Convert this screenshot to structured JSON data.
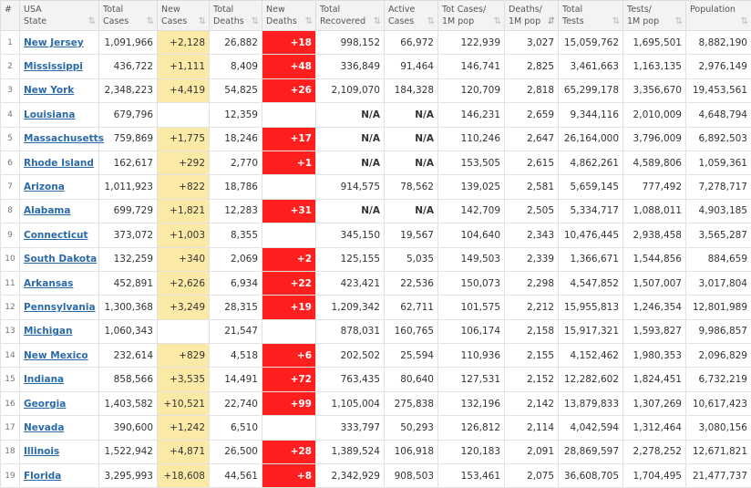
{
  "headers": [
    {
      "key": "num",
      "lines": [
        "#"
      ],
      "sortable": false
    },
    {
      "key": "state",
      "lines": [
        "USA",
        "State"
      ],
      "sortable": true
    },
    {
      "key": "total_cases",
      "lines": [
        "Total",
        "Cases"
      ],
      "sortable": true
    },
    {
      "key": "new_cases",
      "lines": [
        "New",
        "Cases"
      ],
      "sortable": true
    },
    {
      "key": "total_deaths",
      "lines": [
        "Total",
        "Deaths"
      ],
      "sortable": true
    },
    {
      "key": "new_deaths",
      "lines": [
        "New",
        "Deaths"
      ],
      "sortable": true
    },
    {
      "key": "total_recovered",
      "lines": [
        "Total",
        "Recovered"
      ],
      "sortable": true
    },
    {
      "key": "active_cases",
      "lines": [
        "Active",
        "Cases"
      ],
      "sortable": true
    },
    {
      "key": "tot_cases_per_1m",
      "lines": [
        "Tot Cases/",
        "1M pop"
      ],
      "sortable": true
    },
    {
      "key": "deaths_per_1m",
      "lines": [
        "Deaths/",
        "1M pop"
      ],
      "sortable": true,
      "sort_active": true
    },
    {
      "key": "total_tests",
      "lines": [
        "Total",
        "Tests"
      ],
      "sortable": true
    },
    {
      "key": "tests_per_1m",
      "lines": [
        "Tests/",
        "1M pop"
      ],
      "sortable": true
    },
    {
      "key": "population",
      "lines": [
        "Population"
      ],
      "sortable": true
    }
  ],
  "icons": {
    "sort": "sort-arrows-icon",
    "sort_active": "sort-desc-icon"
  },
  "colors": {
    "new_cases_bg": "#fbe9a6",
    "new_deaths_bg": "#ff1f1f",
    "link": "#2b6aa9"
  },
  "rows": [
    {
      "num": "1",
      "state": "New Jersey",
      "total_cases": "1,091,966",
      "new_cases": "+2,128",
      "total_deaths": "26,882",
      "new_deaths": "+18",
      "total_recovered": "998,152",
      "active_cases": "66,972",
      "tot_cases_per_1m": "122,939",
      "deaths_per_1m": "3,027",
      "total_tests": "15,059,762",
      "tests_per_1m": "1,695,501",
      "population": "8,882,190"
    },
    {
      "num": "2",
      "state": "Mississippi",
      "total_cases": "436,722",
      "new_cases": "+1,111",
      "total_deaths": "8,409",
      "new_deaths": "+48",
      "total_recovered": "336,849",
      "active_cases": "91,464",
      "tot_cases_per_1m": "146,741",
      "deaths_per_1m": "2,825",
      "total_tests": "3,461,663",
      "tests_per_1m": "1,163,135",
      "population": "2,976,149"
    },
    {
      "num": "3",
      "state": "New York",
      "total_cases": "2,348,223",
      "new_cases": "+4,419",
      "total_deaths": "54,825",
      "new_deaths": "+26",
      "total_recovered": "2,109,070",
      "active_cases": "184,328",
      "tot_cases_per_1m": "120,709",
      "deaths_per_1m": "2,818",
      "total_tests": "65,299,178",
      "tests_per_1m": "3,356,670",
      "population": "19,453,561"
    },
    {
      "num": "4",
      "state": "Louisiana",
      "total_cases": "679,796",
      "new_cases": "",
      "total_deaths": "12,359",
      "new_deaths": "",
      "total_recovered": "N/A",
      "active_cases": "N/A",
      "tot_cases_per_1m": "146,231",
      "deaths_per_1m": "2,659",
      "total_tests": "9,344,116",
      "tests_per_1m": "2,010,009",
      "population": "4,648,794"
    },
    {
      "num": "5",
      "state": "Massachusetts",
      "total_cases": "759,869",
      "new_cases": "+1,775",
      "total_deaths": "18,246",
      "new_deaths": "+17",
      "total_recovered": "N/A",
      "active_cases": "N/A",
      "tot_cases_per_1m": "110,246",
      "deaths_per_1m": "2,647",
      "total_tests": "26,164,000",
      "tests_per_1m": "3,796,009",
      "population": "6,892,503"
    },
    {
      "num": "6",
      "state": "Rhode Island",
      "total_cases": "162,617",
      "new_cases": "+292",
      "total_deaths": "2,770",
      "new_deaths": "+1",
      "total_recovered": "N/A",
      "active_cases": "N/A",
      "tot_cases_per_1m": "153,505",
      "deaths_per_1m": "2,615",
      "total_tests": "4,862,261",
      "tests_per_1m": "4,589,806",
      "population": "1,059,361"
    },
    {
      "num": "7",
      "state": "Arizona",
      "total_cases": "1,011,923",
      "new_cases": "+822",
      "total_deaths": "18,786",
      "new_deaths": "",
      "total_recovered": "914,575",
      "active_cases": "78,562",
      "tot_cases_per_1m": "139,025",
      "deaths_per_1m": "2,581",
      "total_tests": "5,659,145",
      "tests_per_1m": "777,492",
      "population": "7,278,717"
    },
    {
      "num": "8",
      "state": "Alabama",
      "total_cases": "699,729",
      "new_cases": "+1,821",
      "total_deaths": "12,283",
      "new_deaths": "+31",
      "total_recovered": "N/A",
      "active_cases": "N/A",
      "tot_cases_per_1m": "142,709",
      "deaths_per_1m": "2,505",
      "total_tests": "5,334,717",
      "tests_per_1m": "1,088,011",
      "population": "4,903,185"
    },
    {
      "num": "9",
      "state": "Connecticut",
      "total_cases": "373,072",
      "new_cases": "+1,003",
      "total_deaths": "8,355",
      "new_deaths": "",
      "total_recovered": "345,150",
      "active_cases": "19,567",
      "tot_cases_per_1m": "104,640",
      "deaths_per_1m": "2,343",
      "total_tests": "10,476,445",
      "tests_per_1m": "2,938,458",
      "population": "3,565,287"
    },
    {
      "num": "10",
      "state": "South Dakota",
      "total_cases": "132,259",
      "new_cases": "+340",
      "total_deaths": "2,069",
      "new_deaths": "+2",
      "total_recovered": "125,155",
      "active_cases": "5,035",
      "tot_cases_per_1m": "149,503",
      "deaths_per_1m": "2,339",
      "total_tests": "1,366,671",
      "tests_per_1m": "1,544,856",
      "population": "884,659"
    },
    {
      "num": "11",
      "state": "Arkansas",
      "total_cases": "452,891",
      "new_cases": "+2,626",
      "total_deaths": "6,934",
      "new_deaths": "+22",
      "total_recovered": "423,421",
      "active_cases": "22,536",
      "tot_cases_per_1m": "150,073",
      "deaths_per_1m": "2,298",
      "total_tests": "4,547,852",
      "tests_per_1m": "1,507,007",
      "population": "3,017,804"
    },
    {
      "num": "12",
      "state": "Pennsylvania",
      "total_cases": "1,300,368",
      "new_cases": "+3,249",
      "total_deaths": "28,315",
      "new_deaths": "+19",
      "total_recovered": "1,209,342",
      "active_cases": "62,711",
      "tot_cases_per_1m": "101,575",
      "deaths_per_1m": "2,212",
      "total_tests": "15,955,813",
      "tests_per_1m": "1,246,354",
      "population": "12,801,989"
    },
    {
      "num": "13",
      "state": "Michigan",
      "total_cases": "1,060,343",
      "new_cases": "",
      "total_deaths": "21,547",
      "new_deaths": "",
      "total_recovered": "878,031",
      "active_cases": "160,765",
      "tot_cases_per_1m": "106,174",
      "deaths_per_1m": "2,158",
      "total_tests": "15,917,321",
      "tests_per_1m": "1,593,827",
      "population": "9,986,857"
    },
    {
      "num": "14",
      "state": "New Mexico",
      "total_cases": "232,614",
      "new_cases": "+829",
      "total_deaths": "4,518",
      "new_deaths": "+6",
      "total_recovered": "202,502",
      "active_cases": "25,594",
      "tot_cases_per_1m": "110,936",
      "deaths_per_1m": "2,155",
      "total_tests": "4,152,462",
      "tests_per_1m": "1,980,353",
      "population": "2,096,829"
    },
    {
      "num": "15",
      "state": "Indiana",
      "total_cases": "858,566",
      "new_cases": "+3,535",
      "total_deaths": "14,491",
      "new_deaths": "+72",
      "total_recovered": "763,435",
      "active_cases": "80,640",
      "tot_cases_per_1m": "127,531",
      "deaths_per_1m": "2,152",
      "total_tests": "12,282,602",
      "tests_per_1m": "1,824,451",
      "population": "6,732,219"
    },
    {
      "num": "16",
      "state": "Georgia",
      "total_cases": "1,403,582",
      "new_cases": "+10,521",
      "total_deaths": "22,740",
      "new_deaths": "+99",
      "total_recovered": "1,105,004",
      "active_cases": "275,838",
      "tot_cases_per_1m": "132,196",
      "deaths_per_1m": "2,142",
      "total_tests": "13,879,833",
      "tests_per_1m": "1,307,269",
      "population": "10,617,423"
    },
    {
      "num": "17",
      "state": "Nevada",
      "total_cases": "390,600",
      "new_cases": "+1,242",
      "total_deaths": "6,510",
      "new_deaths": "",
      "total_recovered": "333,797",
      "active_cases": "50,293",
      "tot_cases_per_1m": "126,812",
      "deaths_per_1m": "2,114",
      "total_tests": "4,042,594",
      "tests_per_1m": "1,312,464",
      "population": "3,080,156"
    },
    {
      "num": "18",
      "state": "Illinois",
      "total_cases": "1,522,942",
      "new_cases": "+4,871",
      "total_deaths": "26,500",
      "new_deaths": "+28",
      "total_recovered": "1,389,524",
      "active_cases": "106,918",
      "tot_cases_per_1m": "120,183",
      "deaths_per_1m": "2,091",
      "total_tests": "28,869,597",
      "tests_per_1m": "2,278,252",
      "population": "12,671,821"
    },
    {
      "num": "19",
      "state": "Florida",
      "total_cases": "3,295,993",
      "new_cases": "+18,608",
      "total_deaths": "44,561",
      "new_deaths": "+8",
      "total_recovered": "2,342,929",
      "active_cases": "908,503",
      "tot_cases_per_1m": "153,461",
      "deaths_per_1m": "2,075",
      "total_tests": "36,608,705",
      "tests_per_1m": "1,704,495",
      "population": "21,477,737"
    }
  ]
}
